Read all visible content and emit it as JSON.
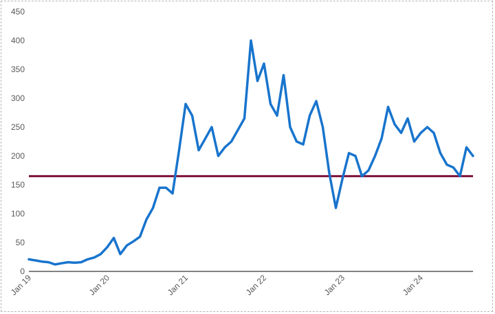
{
  "chart_data": {
    "type": "line",
    "title": "",
    "xlabel": "",
    "ylabel": "",
    "ylim": [
      0,
      450
    ],
    "y_ticks": [
      "0",
      "50",
      "100",
      "150",
      "200",
      "250",
      "300",
      "350",
      "400",
      "450"
    ],
    "x_tick_labels": [
      "Jan 19",
      "Jan 20",
      "Jan 21",
      "Jan 22",
      "Jan 23",
      "Jan 24"
    ],
    "x_range": [
      "2019-01",
      "2024-09"
    ],
    "grid": false,
    "legend": "none",
    "colors": {
      "series": "#1874CD",
      "reference": "#7B0F3A",
      "axis": "#595959"
    },
    "series": [
      {
        "x": [
          "2019-01",
          "2019-02",
          "2019-03",
          "2019-04",
          "2019-05",
          "2019-06",
          "2019-07",
          "2019-08",
          "2019-09",
          "2019-10",
          "2019-11",
          "2019-12",
          "2020-01",
          "2020-02",
          "2020-03",
          "2020-04",
          "2020-05",
          "2020-06",
          "2020-07",
          "2020-08",
          "2020-09",
          "2020-10",
          "2020-11",
          "2020-12",
          "2021-01",
          "2021-02",
          "2021-03",
          "2021-04",
          "2021-05",
          "2021-06",
          "2021-07",
          "2021-08",
          "2021-09",
          "2021-10",
          "2021-11",
          "2021-12",
          "2022-01",
          "2022-02",
          "2022-03",
          "2022-04",
          "2022-05",
          "2022-06",
          "2022-07",
          "2022-08",
          "2022-09",
          "2022-10",
          "2022-11",
          "2022-12",
          "2023-01",
          "2023-02",
          "2023-03",
          "2023-04",
          "2023-05",
          "2023-06",
          "2023-07",
          "2023-08",
          "2023-09",
          "2023-10",
          "2023-11",
          "2023-12",
          "2024-01",
          "2024-02",
          "2024-03",
          "2024-04",
          "2024-05",
          "2024-06",
          "2024-07",
          "2024-08",
          "2024-09"
        ],
        "values": [
          21,
          19,
          17,
          16,
          12,
          14,
          16,
          15,
          16,
          21,
          24,
          30,
          42,
          58,
          30,
          45,
          52,
          60,
          90,
          110,
          145,
          145,
          135,
          210,
          290,
          270,
          210,
          230,
          250,
          200,
          215,
          225,
          245,
          265,
          400,
          330,
          360,
          290,
          270,
          340,
          250,
          225,
          220,
          270,
          295,
          250,
          170,
          110,
          160,
          205,
          200,
          165,
          175,
          200,
          230,
          285,
          255,
          240,
          265,
          225,
          240,
          250,
          240,
          205,
          185,
          180,
          165,
          215,
          200
        ]
      }
    ],
    "reference_line": {
      "value": 165
    }
  }
}
